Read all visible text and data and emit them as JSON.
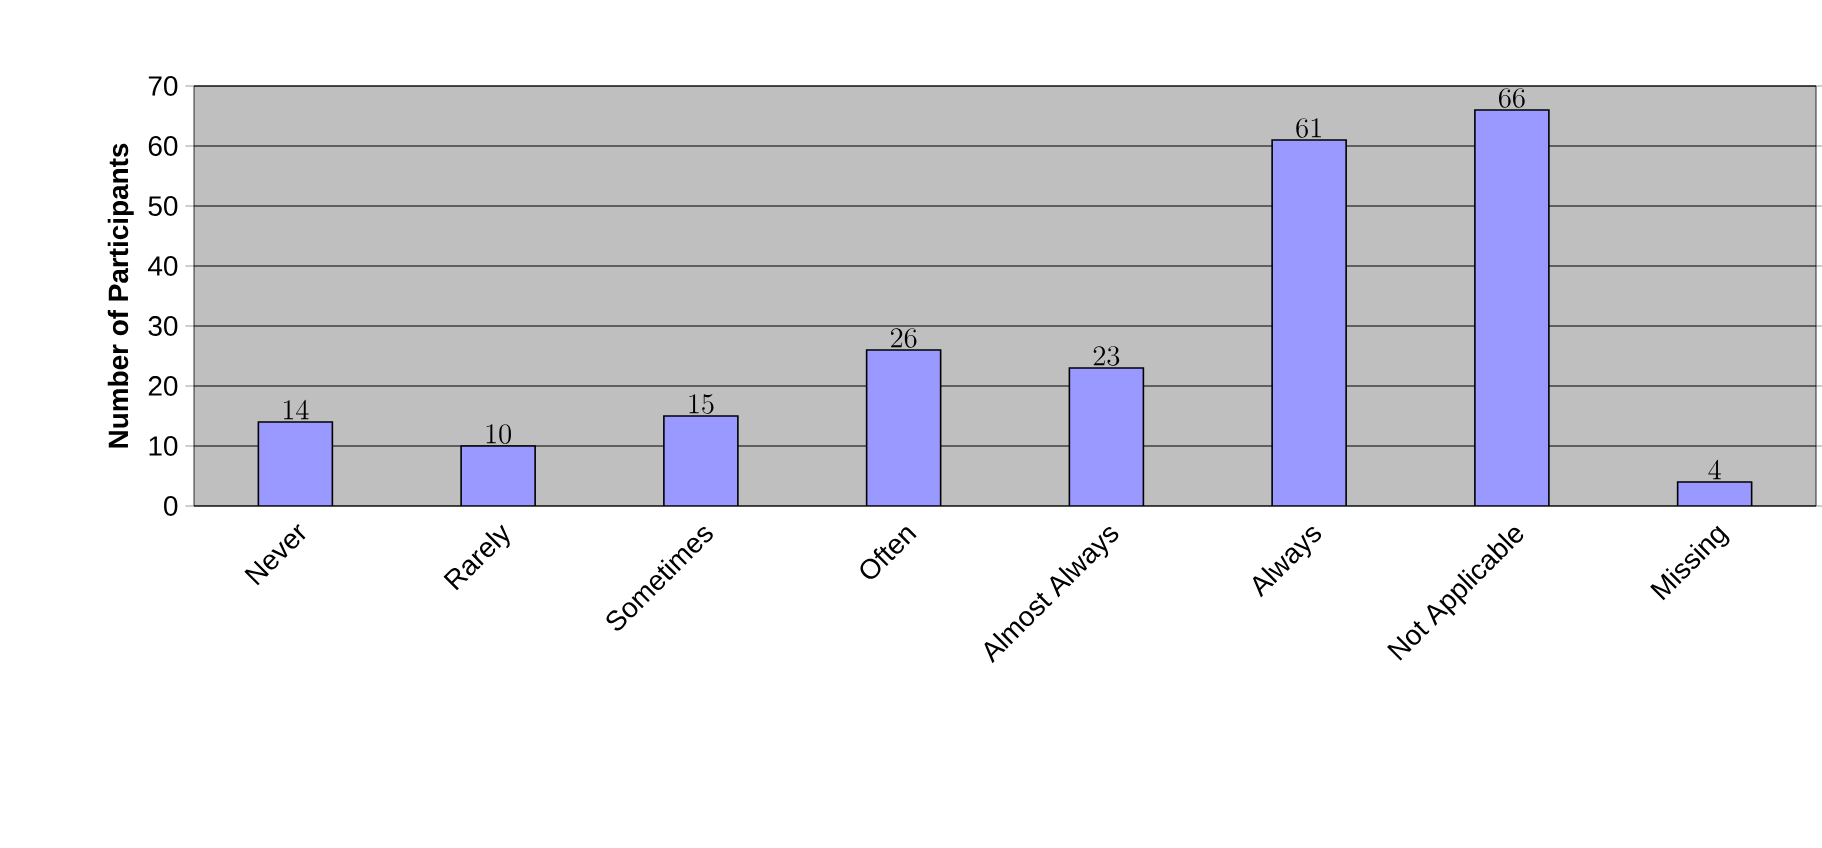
{
  "chart_data": {
    "type": "bar",
    "ylabel": "Number of Participants",
    "categories": [
      "Never",
      "Rarely",
      "Sometimes",
      "Often",
      "Almost Always",
      "Always",
      "Not Applicable",
      "Missing"
    ],
    "values": [
      14,
      10,
      15,
      26,
      23,
      61,
      66,
      4
    ],
    "color": "#9999ff",
    "ylim": [
      0,
      70
    ],
    "yticks": [
      0,
      10,
      20,
      30,
      40,
      50,
      60,
      70
    ],
    "grid": "y",
    "data_labels": true
  }
}
